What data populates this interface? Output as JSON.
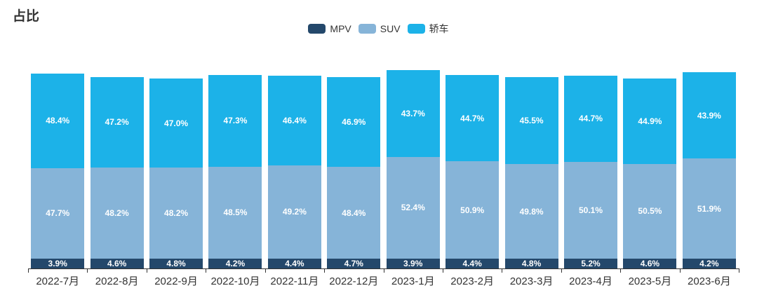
{
  "title": "占比",
  "legend": {
    "items": [
      {
        "label": "MPV",
        "color": "#24486B"
      },
      {
        "label": "SUV",
        "color": "#86B4D8"
      },
      {
        "label": "轿车",
        "color": "#1CB2E8"
      }
    ]
  },
  "chart_data": {
    "type": "bar",
    "stacked": true,
    "percent_stacked": true,
    "title": "占比",
    "categories": [
      "2022-7月",
      "2022-8月",
      "2022-9月",
      "2022-10月",
      "2022-11月",
      "2022-12月",
      "2023-1月",
      "2023-2月",
      "2023-3月",
      "2023-4月",
      "2023-5月",
      "2023-6月"
    ],
    "series": [
      {
        "name": "MPV",
        "color": "#24486B",
        "values": [
          3.9,
          4.6,
          4.8,
          4.2,
          4.4,
          4.7,
          3.9,
          4.4,
          4.8,
          5.2,
          4.6,
          4.2
        ]
      },
      {
        "name": "SUV",
        "color": "#86B4D8",
        "values": [
          47.7,
          48.2,
          48.2,
          48.5,
          49.2,
          48.4,
          52.4,
          50.9,
          49.8,
          50.1,
          50.5,
          51.9
        ]
      },
      {
        "name": "轿车",
        "color": "#1CB2E8",
        "values": [
          48.4,
          47.2,
          47.0,
          47.3,
          46.4,
          46.9,
          43.7,
          44.7,
          45.5,
          44.7,
          44.9,
          43.9
        ]
      }
    ],
    "value_suffix": "%",
    "data_labels": "inside-white-bold",
    "relative_heights": [
      0.982,
      0.965,
      0.958,
      0.975,
      0.972,
      0.965,
      1.0,
      0.975,
      0.965,
      0.972,
      0.958,
      0.989
    ],
    "legend_position": "top-center",
    "y_axis_visible": false,
    "x_axis_line": true,
    "grid": false
  }
}
